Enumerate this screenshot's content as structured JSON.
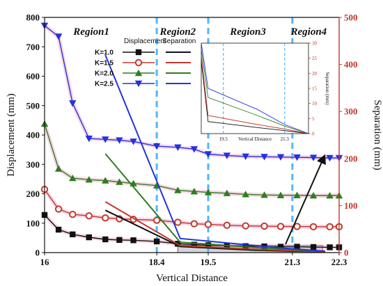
{
  "chart_data": {
    "type": "line",
    "xlabel": "Vertical Distance",
    "ylabel": "Displacement (mm)",
    "y2label": "Separation (mm)",
    "xlim": [
      16,
      22.3
    ],
    "ylim": [
      0,
      800
    ],
    "y2lim": [
      0,
      500
    ],
    "x_ticks": [
      "16",
      "18.4",
      "19.5",
      "21.3",
      "22.3"
    ],
    "y_ticks": [
      "0",
      "100",
      "200",
      "300",
      "400",
      "500",
      "600",
      "700",
      "800"
    ],
    "y2_ticks": [
      "0",
      "100",
      "200",
      "300",
      "400",
      "500"
    ],
    "regions": [
      {
        "label": "Region1",
        "x": 17.0
      },
      {
        "label": "Region2",
        "x": 18.85
      },
      {
        "label": "Region3",
        "x": 20.35
      },
      {
        "label": "Region4",
        "x": 21.65
      }
    ],
    "region_boundaries": [
      18.4,
      19.5,
      21.3
    ],
    "legend": {
      "header_displacement": "Displacement",
      "header_separation": "Separation",
      "entries": [
        "K=1.0",
        "K=1.5",
        "K=2.0",
        "K=2.5"
      ]
    },
    "colors": {
      "K=1.0": "#111111",
      "K=1.5": "#c0392b",
      "K=2.0": "#2e7d1f",
      "K=2.5": "#2233dd",
      "boundary": "#33aaff",
      "right_axis": "#c0392b"
    },
    "displacement_series": [
      {
        "name": "K=1.0",
        "marker": "square",
        "x": [
          16.0,
          16.3,
          16.6,
          16.95,
          17.3,
          17.6,
          17.9,
          18.4,
          18.85,
          19.2,
          19.5,
          19.9,
          20.3,
          20.7,
          21.05,
          21.4,
          21.75,
          22.1,
          22.3
        ],
        "y": [
          128,
          78,
          62,
          52,
          45,
          43,
          42,
          38,
          30,
          27,
          25,
          23,
          22,
          21,
          20,
          20,
          19,
          18,
          18
        ]
      },
      {
        "name": "K=1.5",
        "marker": "circle",
        "x": [
          16.0,
          16.3,
          16.6,
          16.95,
          17.3,
          17.6,
          17.9,
          18.4,
          18.85,
          19.2,
          19.5,
          19.9,
          20.3,
          20.7,
          21.05,
          21.4,
          21.75,
          22.1,
          22.3
        ],
        "y": [
          215,
          148,
          130,
          125,
          118,
          115,
          113,
          110,
          103,
          98,
          96,
          93,
          91,
          90,
          89,
          89,
          88,
          88,
          88
        ]
      },
      {
        "name": "K=2.0",
        "marker": "triangle-up",
        "x": [
          16.0,
          16.3,
          16.6,
          16.95,
          17.3,
          17.6,
          17.9,
          18.4,
          18.85,
          19.2,
          19.5,
          19.9,
          20.3,
          20.7,
          21.05,
          21.4,
          21.75,
          22.1,
          22.3
        ],
        "y": [
          438,
          285,
          253,
          248,
          245,
          240,
          235,
          228,
          212,
          208,
          205,
          202,
          198,
          196,
          195,
          195,
          194,
          194,
          194
        ]
      },
      {
        "name": "K=2.5",
        "marker": "triangle-down",
        "x": [
          16.0,
          16.3,
          16.6,
          16.95,
          17.3,
          17.6,
          17.9,
          18.4,
          18.85,
          19.2,
          19.5,
          19.9,
          20.3,
          20.7,
          21.05,
          21.4,
          21.75,
          22.1,
          22.3
        ],
        "y": [
          772,
          735,
          508,
          388,
          385,
          382,
          378,
          362,
          358,
          352,
          335,
          330,
          327,
          326,
          325,
          324,
          323,
          322,
          322
        ]
      }
    ],
    "separation_series": [
      {
        "name": "K=1.0",
        "x": [
          17.3,
          18.9,
          20.5,
          21.3,
          22.0
        ],
        "y": [
          90,
          13,
          5,
          3,
          2
        ]
      },
      {
        "name": "K=1.5",
        "x": [
          17.3,
          18.9,
          20.5,
          21.3,
          22.0
        ],
        "y": [
          108,
          15,
          7,
          4,
          2
        ]
      },
      {
        "name": "K=2.0",
        "x": [
          17.3,
          18.9,
          20.5,
          21.3,
          22.0
        ],
        "y": [
          210,
          22,
          11,
          6,
          3
        ]
      },
      {
        "name": "K=2.5",
        "x": [
          17.3,
          18.9,
          20.5,
          21.3,
          22.0
        ],
        "y": [
          420,
          30,
          15,
          8,
          3
        ]
      }
    ],
    "inset": {
      "xlabel": "Vertical Distance",
      "ylabel": "Separation (mm)",
      "x_ticks": [
        "19.5",
        "21.3"
      ],
      "y_ticks": [
        "0",
        "5",
        "10",
        "15",
        "20",
        "25",
        "30"
      ]
    }
  }
}
